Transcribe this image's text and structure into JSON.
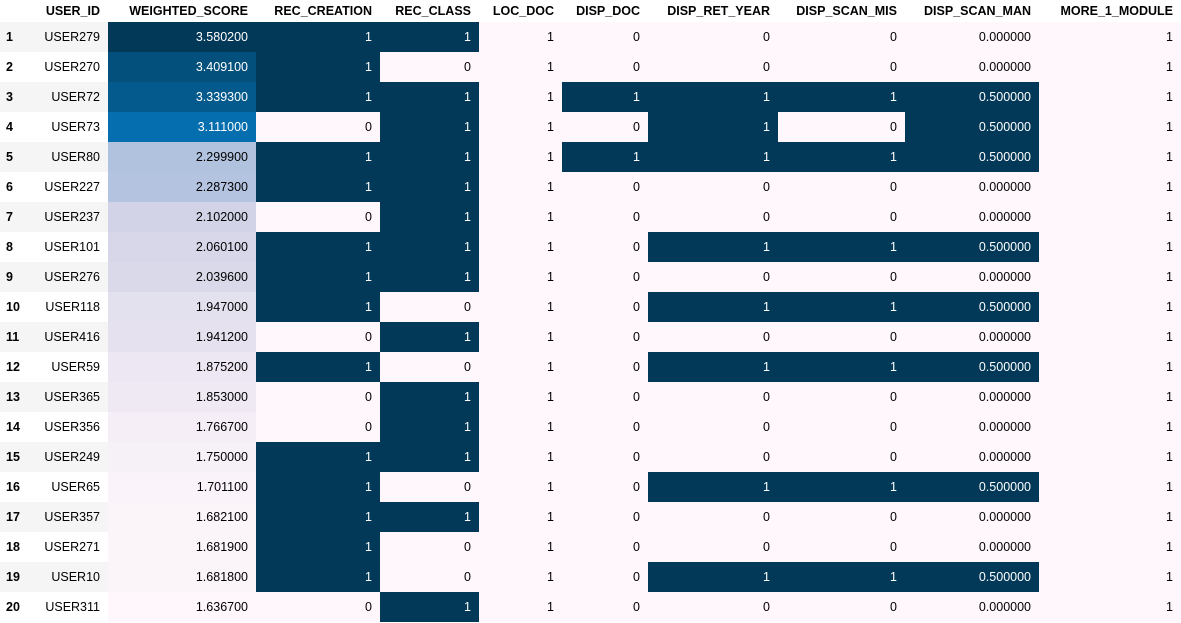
{
  "table": {
    "columns": [
      "USER_ID",
      "WEIGHTED_SCORE",
      "REC_CREATION",
      "REC_CLASS",
      "LOC_DOC",
      "DISP_DOC",
      "DISP_RET_YEAR",
      "DISP_SCAN_MIS",
      "DISP_SCAN_MAN",
      "MORE_1_MODULE"
    ],
    "index": [
      "1",
      "2",
      "3",
      "4",
      "5",
      "6",
      "7",
      "8",
      "9",
      "10",
      "11",
      "12",
      "13",
      "14",
      "15",
      "16",
      "17",
      "18",
      "19",
      "20"
    ],
    "rows": [
      [
        "USER279",
        "3.580200",
        "1",
        "1",
        "1",
        "0",
        "0",
        "0",
        "0.000000",
        "1"
      ],
      [
        "USER270",
        "3.409100",
        "1",
        "0",
        "1",
        "0",
        "0",
        "0",
        "0.000000",
        "1"
      ],
      [
        "USER72",
        "3.339300",
        "1",
        "1",
        "1",
        "1",
        "1",
        "1",
        "0.500000",
        "1"
      ],
      [
        "USER73",
        "3.111000",
        "0",
        "1",
        "1",
        "0",
        "1",
        "0",
        "0.500000",
        "1"
      ],
      [
        "USER80",
        "2.299900",
        "1",
        "1",
        "1",
        "1",
        "1",
        "1",
        "0.500000",
        "1"
      ],
      [
        "USER227",
        "2.287300",
        "1",
        "1",
        "1",
        "0",
        "0",
        "0",
        "0.000000",
        "1"
      ],
      [
        "USER237",
        "2.102000",
        "0",
        "1",
        "1",
        "0",
        "0",
        "0",
        "0.000000",
        "1"
      ],
      [
        "USER101",
        "2.060100",
        "1",
        "1",
        "1",
        "0",
        "1",
        "1",
        "0.500000",
        "1"
      ],
      [
        "USER276",
        "2.039600",
        "1",
        "1",
        "1",
        "0",
        "0",
        "0",
        "0.000000",
        "1"
      ],
      [
        "USER118",
        "1.947000",
        "1",
        "0",
        "1",
        "0",
        "1",
        "1",
        "0.500000",
        "1"
      ],
      [
        "USER416",
        "1.941200",
        "0",
        "1",
        "1",
        "0",
        "0",
        "0",
        "0.000000",
        "1"
      ],
      [
        "USER59",
        "1.875200",
        "1",
        "0",
        "1",
        "0",
        "1",
        "1",
        "0.500000",
        "1"
      ],
      [
        "USER365",
        "1.853000",
        "0",
        "1",
        "1",
        "0",
        "0",
        "0",
        "0.000000",
        "1"
      ],
      [
        "USER356",
        "1.766700",
        "0",
        "1",
        "1",
        "0",
        "0",
        "0",
        "0.000000",
        "1"
      ],
      [
        "USER249",
        "1.750000",
        "1",
        "1",
        "1",
        "0",
        "0",
        "0",
        "0.000000",
        "1"
      ],
      [
        "USER65",
        "1.701100",
        "1",
        "0",
        "1",
        "0",
        "1",
        "1",
        "0.500000",
        "1"
      ],
      [
        "USER357",
        "1.682100",
        "1",
        "1",
        "1",
        "0",
        "0",
        "0",
        "0.000000",
        "1"
      ],
      [
        "USER271",
        "1.681900",
        "1",
        "0",
        "1",
        "0",
        "0",
        "0",
        "0.000000",
        "1"
      ],
      [
        "USER10",
        "1.681800",
        "1",
        "0",
        "1",
        "0",
        "1",
        "1",
        "0.500000",
        "1"
      ],
      [
        "USER311",
        "1.636700",
        "0",
        "1",
        "1",
        "0",
        "0",
        "0",
        "0.000000",
        "1"
      ]
    ]
  }
}
